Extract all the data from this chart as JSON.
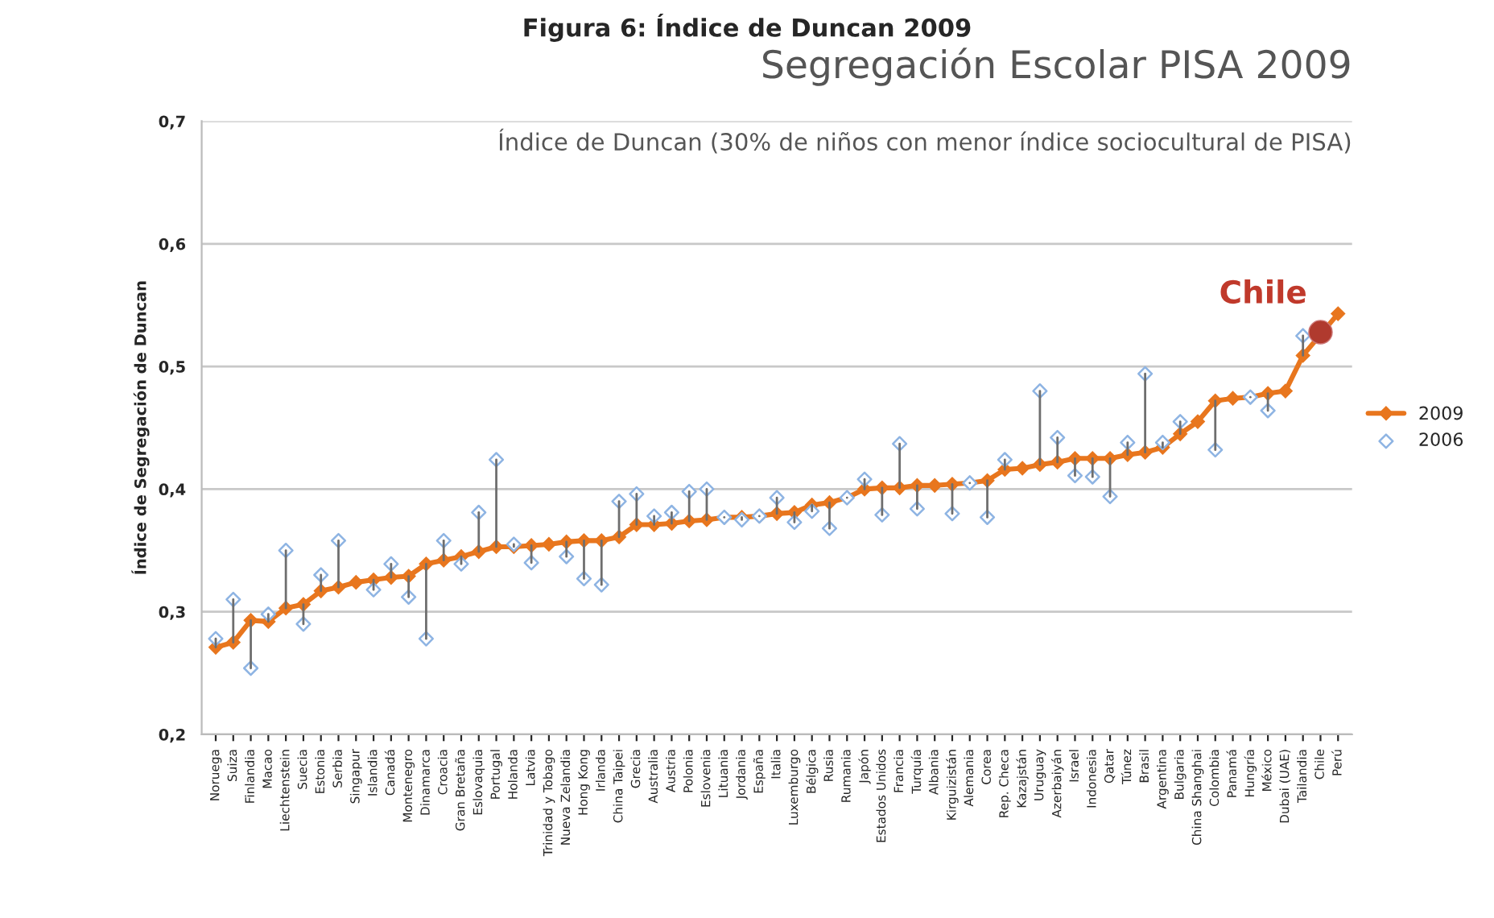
{
  "chart_data": {
    "type": "line",
    "title": "Segregación Escolar PISA 2009",
    "subtitle": "Índice de Duncan (30% de niños con menor índice sociocultural de PISA)",
    "ylabel": "Índice de Segregación de Duncan",
    "categories": [
      "Noruega",
      "Suiza",
      "Finlandia",
      "Macao",
      "Liechtenstein",
      "Suecia",
      "Estonia",
      "Serbia",
      "Singapur",
      "Islandia",
      "Canadá",
      "Montenegro",
      "Dinamarca",
      "Croacia",
      "Gran Bretaña",
      "Eslovaquia",
      "Portugal",
      "Holanda",
      "Latvia",
      "Trinidad y Tobago",
      "Nueva Zelandia",
      "Hong Kong",
      "Irlanda",
      "China Taipei",
      "Grecia",
      "Australia",
      "Austria",
      "Polonia",
      "Eslovenia",
      "Lituania",
      "Jordania",
      "España",
      "Italia",
      "Luxemburgo",
      "Bélgica",
      "Rusia",
      "Rumania",
      "Japón",
      "Estados Unidos",
      "Francia",
      "Turquía",
      "Albania",
      "Kirguizistán",
      "Alemania",
      "Corea",
      "Rep. Checa",
      "Kazajstán",
      "Uruguay",
      "Azerbaiyán",
      "Israel",
      "Indonesia",
      "Qatar",
      "Túnez",
      "Brasil",
      "Argentina",
      "Bulgaria",
      "China Shanghai",
      "Colombia",
      "Panamá",
      "Hungría",
      "México",
      "Dubai (UAE)",
      "Tailandia",
      "Chile",
      "Perú"
    ],
    "series": [
      {
        "name": "2009",
        "type": "line",
        "marker": "diamond",
        "color": "#e8761e",
        "values": [
          0.271,
          0.275,
          0.293,
          0.292,
          0.303,
          0.306,
          0.317,
          0.32,
          0.324,
          0.326,
          0.328,
          0.329,
          0.339,
          0.342,
          0.345,
          0.349,
          0.353,
          0.353,
          0.354,
          0.355,
          0.357,
          0.358,
          0.358,
          0.361,
          0.371,
          0.371,
          0.372,
          0.374,
          0.375,
          0.377,
          0.377,
          0.378,
          0.38,
          0.381,
          0.387,
          0.389,
          0.393,
          0.4,
          0.401,
          0.401,
          0.403,
          0.403,
          0.404,
          0.405,
          0.407,
          0.416,
          0.417,
          0.42,
          0.422,
          0.425,
          0.425,
          0.425,
          0.428,
          0.43,
          0.434,
          0.445,
          0.455,
          0.472,
          0.474,
          0.475,
          0.478,
          0.48,
          0.509,
          null,
          0.543
        ],
        "errors": [
          [
            0.271,
            0.278
          ],
          [
            0.275,
            0.31
          ],
          [
            0.254,
            0.293
          ],
          [
            0.292,
            0.298
          ],
          [
            0.303,
            0.35
          ],
          [
            0.29,
            0.306
          ],
          [
            0.317,
            0.33
          ],
          [
            0.32,
            0.358
          ],
          null,
          [
            0.318,
            0.326
          ],
          [
            0.328,
            0.339
          ],
          [
            0.312,
            0.329
          ],
          [
            0.278,
            0.339
          ],
          [
            0.342,
            0.358
          ],
          [
            0.339,
            0.345
          ],
          [
            0.349,
            0.381
          ],
          [
            0.353,
            0.424
          ],
          [
            0.353,
            0.355
          ],
          [
            0.34,
            0.354
          ],
          null,
          [
            0.345,
            0.357
          ],
          [
            0.327,
            0.358
          ],
          [
            0.322,
            0.358
          ],
          [
            0.361,
            0.39
          ],
          [
            0.371,
            0.396
          ],
          [
            0.371,
            0.378
          ],
          [
            0.372,
            0.381
          ],
          [
            0.374,
            0.398
          ],
          [
            0.375,
            0.4
          ],
          [
            0.377,
            0.377
          ],
          [
            0.375,
            0.377
          ],
          [
            0.378,
            0.378
          ],
          [
            0.38,
            0.393
          ],
          [
            0.373,
            0.381
          ],
          [
            0.382,
            0.387
          ],
          [
            0.368,
            0.389
          ],
          [
            0.393,
            0.393
          ],
          [
            0.4,
            0.408
          ],
          [
            0.379,
            0.401
          ],
          [
            0.401,
            0.437
          ],
          [
            0.384,
            0.403
          ],
          null,
          [
            0.38,
            0.404
          ],
          [
            0.405,
            0.405
          ],
          [
            0.377,
            0.407
          ],
          [
            0.416,
            0.424
          ],
          null,
          [
            0.42,
            0.48
          ],
          [
            0.422,
            0.442
          ],
          [
            0.411,
            0.425
          ],
          [
            0.41,
            0.425
          ],
          [
            0.394,
            0.425
          ],
          [
            0.428,
            0.438
          ],
          [
            0.43,
            0.494
          ],
          [
            0.434,
            0.438
          ],
          [
            0.445,
            0.455
          ],
          null,
          [
            0.432,
            0.472
          ],
          null,
          [
            0.475,
            0.475
          ],
          [
            0.464,
            0.478
          ],
          null,
          [
            0.509,
            0.525
          ],
          null,
          null
        ]
      },
      {
        "name": "2006",
        "type": "scatter",
        "marker": "diamond",
        "color": "#8eb4e3",
        "values": [
          0.278,
          0.31,
          0.254,
          0.298,
          0.35,
          0.29,
          0.33,
          0.358,
          null,
          0.318,
          0.339,
          0.312,
          0.278,
          0.358,
          0.339,
          0.381,
          0.424,
          0.355,
          0.34,
          null,
          0.345,
          0.327,
          0.322,
          0.39,
          0.396,
          0.378,
          0.381,
          0.398,
          0.4,
          0.377,
          0.375,
          0.378,
          0.393,
          0.373,
          0.382,
          0.368,
          0.393,
          0.408,
          0.379,
          0.437,
          0.384,
          null,
          0.38,
          0.405,
          0.377,
          0.424,
          null,
          0.48,
          0.442,
          0.411,
          0.41,
          0.394,
          0.438,
          0.494,
          0.438,
          0.455,
          null,
          0.432,
          null,
          0.475,
          0.464,
          null,
          0.525,
          null,
          null
        ]
      }
    ],
    "annotations": [
      {
        "text": "Chile",
        "x": "Chile",
        "y": 0.528
      },
      "Figura 6: Índice de Duncan 2009"
    ],
    "ylim": [
      0.2,
      0.7
    ],
    "yticks": [
      {
        "value": 0.2,
        "label": "0,2"
      },
      {
        "value": 0.3,
        "label": "0,3"
      },
      {
        "value": 0.4,
        "label": "0,4"
      },
      {
        "value": 0.5,
        "label": "0,5"
      },
      {
        "value": 0.6,
        "label": "0,6"
      },
      {
        "value": 0.7,
        "label": "0,7"
      }
    ],
    "grid": "y",
    "legend": "right"
  }
}
